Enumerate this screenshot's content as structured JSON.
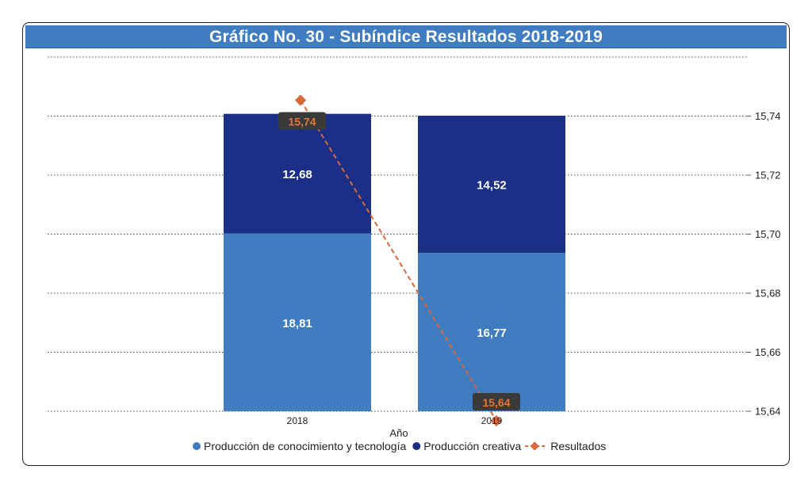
{
  "chart_data": {
    "type": "bar",
    "stacked": true,
    "title": "Gráfico No. 30 - Subíndice Resultados 2018-2019",
    "xlabel": "Año",
    "ylabel": "",
    "categories": [
      "2018",
      "2019"
    ],
    "series": [
      {
        "name": "Producción de conocimiento y tecnología",
        "values": [
          18.81,
          16.77
        ],
        "color": "#3f7dc0",
        "labels": [
          "18,81",
          "16,77"
        ]
      },
      {
        "name": "Producción creativa",
        "values": [
          12.68,
          14.52
        ],
        "color": "#1b2f86",
        "labels": [
          "12,68",
          "14,52"
        ]
      }
    ],
    "line_series": {
      "name": "Resultados",
      "values": [
        15.74,
        15.64
      ],
      "labels": [
        "15,74",
        "15,64"
      ],
      "color": "#d9683a",
      "axis": "right"
    },
    "right_axis": {
      "ylim": [
        15.64,
        15.76
      ],
      "ticks": [
        15.64,
        15.66,
        15.68,
        15.7,
        15.72,
        15.74
      ],
      "tick_labels": [
        "15,64",
        "15,66",
        "15,68",
        "15,70",
        "15,72",
        "15,74"
      ]
    },
    "left_axis": {
      "ylim": [
        0,
        37.5
      ],
      "visible": false
    },
    "grid": "dotted",
    "legend_position": "bottom"
  }
}
